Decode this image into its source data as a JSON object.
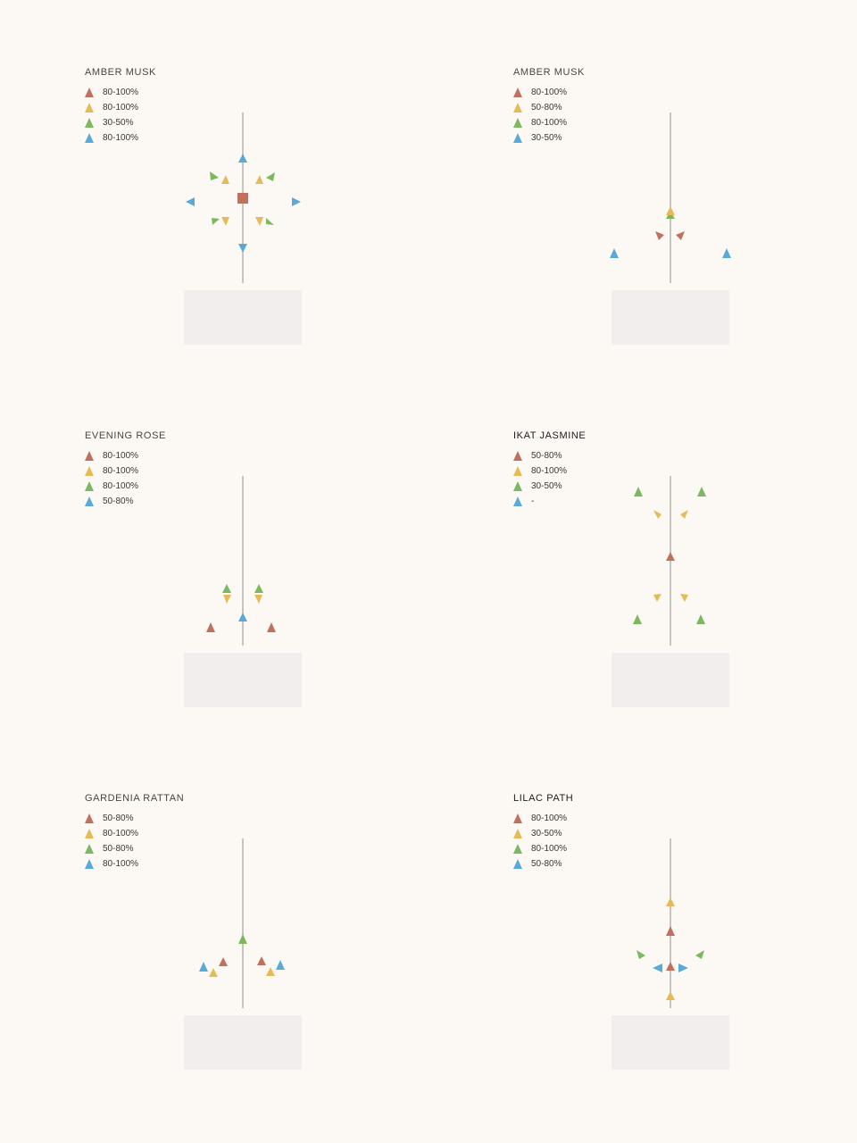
{
  "colors": {
    "background": "#fcf9f5",
    "red": "#c2705e",
    "yellow": "#e6bb57",
    "green": "#7cb860",
    "blue": "#5aaad8",
    "stem": "#b8b2ae",
    "base": "#f1eeed"
  },
  "legend_icon": "triangle-icon",
  "panels": [
    {
      "title": "AMBER MUSK",
      "legend": [
        {
          "color": "red",
          "label": "80-100%"
        },
        {
          "color": "yellow",
          "label": "80-100%"
        },
        {
          "color": "green",
          "label": "30-50%"
        },
        {
          "color": "blue",
          "label": "80-100%"
        }
      ]
    },
    {
      "title": "AMBER MUSK",
      "legend": [
        {
          "color": "red",
          "label": "80-100%"
        },
        {
          "color": "yellow",
          "label": "50-80%"
        },
        {
          "color": "green",
          "label": "80-100%"
        },
        {
          "color": "blue",
          "label": "30-50%"
        }
      ]
    },
    {
      "title": "EVENING ROSE",
      "legend": [
        {
          "color": "red",
          "label": "80-100%"
        },
        {
          "color": "yellow",
          "label": "80-100%"
        },
        {
          "color": "green",
          "label": "80-100%"
        },
        {
          "color": "blue",
          "label": "50-80%"
        }
      ]
    },
    {
      "title": "IKAT JASMINE",
      "legend": [
        {
          "color": "red",
          "label": "50-80%"
        },
        {
          "color": "yellow",
          "label": "80-100%"
        },
        {
          "color": "green",
          "label": "30-50%"
        },
        {
          "color": "blue",
          "label": "-"
        }
      ]
    },
    {
      "title": "GARDENIA RATTAN",
      "legend": [
        {
          "color": "red",
          "label": "50-80%"
        },
        {
          "color": "yellow",
          "label": "80-100%"
        },
        {
          "color": "green",
          "label": "50-80%"
        },
        {
          "color": "blue",
          "label": "80-100%"
        }
      ]
    },
    {
      "title": "LILAC PATH",
      "legend": [
        {
          "color": "red",
          "label": "80-100%"
        },
        {
          "color": "yellow",
          "label": "30-50%"
        },
        {
          "color": "green",
          "label": "80-100%"
        },
        {
          "color": "blue",
          "label": "50-80%"
        }
      ]
    }
  ]
}
